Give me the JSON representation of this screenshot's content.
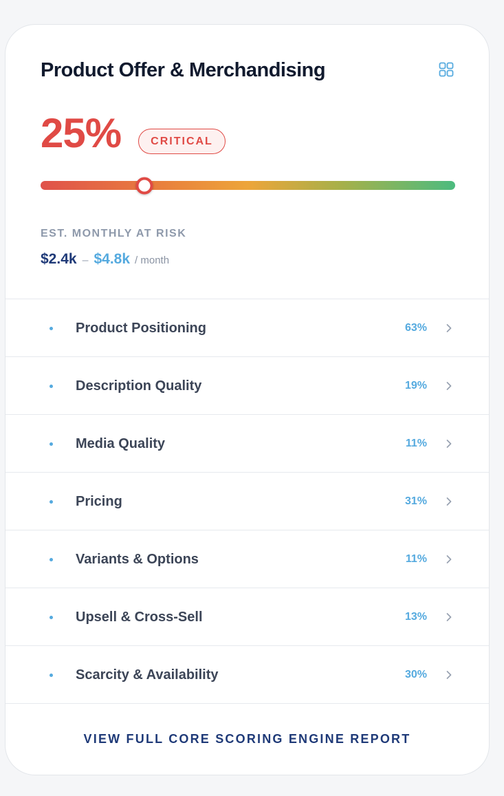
{
  "card": {
    "title": "Product Offer & Merchandising",
    "icon": "grid-icon",
    "score": {
      "value_label": "25%",
      "value": 25,
      "status": "CRITICAL",
      "status_color": "#e04a45"
    },
    "risk": {
      "label": "EST. MONTHLY AT RISK",
      "low": "$2.4k",
      "separator": "–",
      "high": "$4.8k",
      "unit": "/ month"
    },
    "items": [
      {
        "label": "Product Positioning",
        "percent": "63%"
      },
      {
        "label": "Description Quality",
        "percent": "19%"
      },
      {
        "label": "Media Quality",
        "percent": "11%"
      },
      {
        "label": "Pricing",
        "percent": "31%"
      },
      {
        "label": "Variants & Options",
        "percent": "11%"
      },
      {
        "label": "Upsell & Cross-Sell",
        "percent": "13%"
      },
      {
        "label": "Scarcity & Availability",
        "percent": "30%"
      }
    ],
    "footer_link": "VIEW FULL CORE SCORING ENGINE REPORT"
  },
  "colors": {
    "accent_blue": "#55aadf",
    "navy": "#1f3a78",
    "critical_red": "#e04a45"
  }
}
